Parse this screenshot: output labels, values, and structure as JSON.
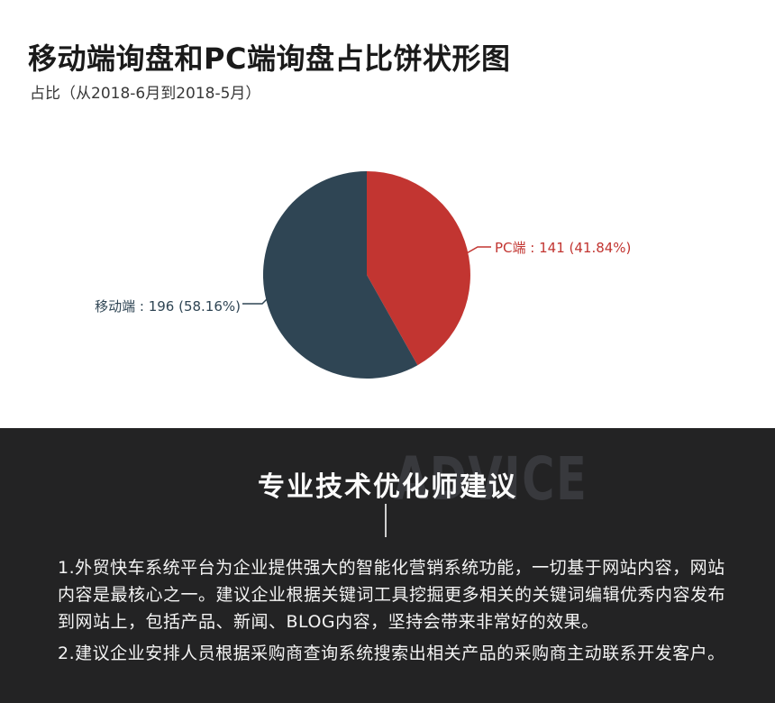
{
  "header": {
    "title": "移动端询盘和PC端询盘占比饼状形图",
    "subtitle": "占比（从2018-6月到2018-5月）"
  },
  "chart_data": {
    "type": "pie",
    "title": "移动端询盘和PC端询盘占比饼状形图",
    "subtitle": "占比（从2018-6月到2018-5月）",
    "start_angle_deg": 0,
    "direction": "clockwise",
    "total": 337,
    "legend_position": "none",
    "slices": [
      {
        "name": "PC端",
        "value": 141,
        "percent": "41.84",
        "color": "#c23531",
        "label_side": "right"
      },
      {
        "name": "移动端",
        "value": 196,
        "percent": "58.16",
        "color": "#2f4554",
        "label_side": "left"
      }
    ]
  },
  "advice": {
    "heading": "专业技术优化师建议",
    "watermark": "ADVICE",
    "lines": [
      "1.外贸快车系统平台为企业提供强大的智能化营销系统功能，一切基于网站内容，网站",
      "内容是最核心之一。建议企业根据关键词工具挖掘更多相关的关键词编辑优秀内容发布",
      "到网站上，包括产品、新闻、BLOG内容，坚持会带来非常好的效果。",
      "2.建议企业安排人员根据采购商查询系统搜索出相关产品的采购商主动联系开发客户。"
    ]
  },
  "colors": {
    "pc_red": "#c23531",
    "mobile_slate": "#2f4554",
    "advice_background": "#232324",
    "watermark_gray": "#38393d"
  }
}
